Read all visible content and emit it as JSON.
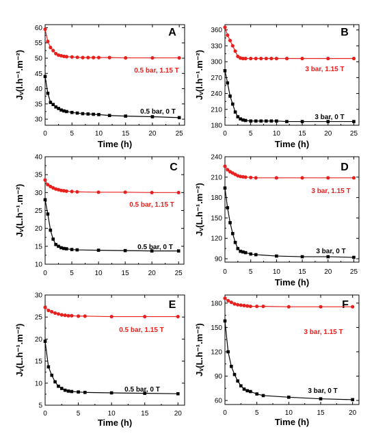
{
  "chart_data": [
    {
      "type": "line",
      "panel": "A",
      "xlabel": "Time (h)",
      "ylabel": "Jᵥ(l.h⁻¹.m⁻²)",
      "xlim": [
        0,
        26
      ],
      "ylim": [
        28,
        61
      ],
      "xticks": [
        0,
        5,
        10,
        15,
        20,
        25
      ],
      "yticks": [
        30,
        35,
        40,
        45,
        50,
        55,
        60
      ],
      "colors": {
        "0.5 bar, 1.15 T": "#e8201d",
        "0.5 bar, 0 T": "#000000"
      },
      "series": [
        {
          "name": "0.5 bar, 1.15 T",
          "x": [
            0,
            0.5,
            1,
            1.5,
            2,
            2.5,
            3,
            3.5,
            4,
            5,
            6,
            7,
            8,
            9,
            10,
            12,
            15,
            20,
            25
          ],
          "y": [
            59.5,
            55.5,
            53.5,
            52.5,
            51.5,
            51,
            50.8,
            50.6,
            50.5,
            50.4,
            50.3,
            50.2,
            50.2,
            50.2,
            50.2,
            50.2,
            50.1,
            50.1,
            50.1
          ]
        },
        {
          "name": "0.5 bar, 0 T",
          "x": [
            0,
            0.5,
            1,
            1.5,
            2,
            2.5,
            3,
            3.5,
            4,
            5,
            6,
            7,
            8,
            9,
            10,
            12,
            15,
            20,
            25
          ],
          "y": [
            44,
            38.5,
            35.5,
            34.8,
            34,
            33.5,
            33,
            32.7,
            32.5,
            32.2,
            32,
            31.8,
            31.7,
            31.6,
            31.5,
            31.2,
            31,
            30.8,
            30.5
          ]
        }
      ]
    },
    {
      "type": "line",
      "panel": "B",
      "xlabel": "Time (h)",
      "ylabel": "Jᵥ(l.h⁻¹.m⁻²)",
      "xlim": [
        0,
        26
      ],
      "ylim": [
        180,
        370
      ],
      "xticks": [
        0,
        5,
        10,
        15,
        20,
        25
      ],
      "yticks": [
        180,
        210,
        240,
        270,
        300,
        330,
        360
      ],
      "colors": {
        "3 bar, 1.15 T": "#e8201d",
        "3 bar, 0 T": "#000000"
      },
      "series": [
        {
          "name": "3 bar, 1.15 T",
          "x": [
            0,
            0.5,
            1,
            1.5,
            2,
            2.5,
            3,
            3.5,
            4,
            5,
            6,
            7,
            8,
            9,
            10,
            12,
            15,
            20,
            25
          ],
          "y": [
            365,
            350,
            340,
            330,
            320,
            310,
            307,
            306,
            306,
            306,
            306,
            306,
            306,
            306,
            306,
            306,
            306,
            306,
            306
          ]
        },
        {
          "name": "3 bar, 0 T",
          "x": [
            0,
            0.5,
            1,
            1.5,
            2,
            2.5,
            3,
            3.5,
            4,
            5,
            6,
            7,
            8,
            9,
            10,
            12,
            15,
            20,
            25
          ],
          "y": [
            283,
            260,
            235,
            220,
            205,
            196,
            192,
            190,
            189,
            188,
            188,
            188,
            188,
            188,
            188,
            187,
            187,
            187,
            187
          ]
        }
      ]
    },
    {
      "type": "line",
      "panel": "C",
      "xlabel": "",
      "ylabel": "Jᵥ(L.h⁻¹.m⁻²)",
      "xlim": [
        0,
        26
      ],
      "ylim": [
        10,
        40
      ],
      "xticks": [
        0,
        5,
        10,
        15,
        20,
        25
      ],
      "yticks": [
        10,
        15,
        20,
        25,
        30,
        35,
        40
      ],
      "colors": {
        "0.5 bar, 1.15 T": "#e8201d",
        "0.5 bar, 0 T": "#000000"
      },
      "series": [
        {
          "name": "0.5 bar, 1.15 T",
          "x": [
            0,
            0.5,
            1,
            1.5,
            2,
            2.5,
            3,
            3.5,
            4,
            5,
            6,
            10,
            15,
            20,
            25
          ],
          "y": [
            33.5,
            32.2,
            31.7,
            31.3,
            31,
            30.8,
            30.6,
            30.5,
            30.4,
            30.3,
            30.2,
            30.1,
            30.1,
            30,
            30
          ]
        },
        {
          "name": "0.5 bar, 0 T",
          "x": [
            0,
            0.5,
            1,
            1.5,
            2,
            2.5,
            3,
            3.5,
            4,
            5,
            6,
            10,
            15,
            20,
            25
          ],
          "y": [
            28,
            24,
            19.5,
            17,
            15.5,
            15,
            14.6,
            14.4,
            14.3,
            14.1,
            14,
            13.9,
            13.8,
            13.7,
            13.7
          ]
        }
      ]
    },
    {
      "type": "line",
      "panel": "D",
      "xlabel": "Time (h)",
      "ylabel": "Jᵥ(L.h⁻¹.m⁻²)",
      "xlim": [
        0,
        26
      ],
      "ylim": [
        85,
        240
      ],
      "xticks": [
        0,
        5,
        10,
        15,
        20,
        25
      ],
      "yticks": [
        90,
        120,
        150,
        180,
        210,
        240
      ],
      "colors": {
        "3 bar, 1.15 T": "#e8201d",
        "3 bar, 0 T": "#000000"
      },
      "series": [
        {
          "name": "3 bar, 1.15 T",
          "x": [
            0,
            0.5,
            1,
            1.5,
            2,
            2.5,
            3,
            3.5,
            4,
            5,
            6,
            10,
            15,
            20,
            25
          ],
          "y": [
            226,
            221,
            218,
            216,
            214,
            212,
            211,
            210.5,
            210,
            209.5,
            209,
            209,
            209,
            209,
            209
          ]
        },
        {
          "name": "3 bar, 0 T",
          "x": [
            0,
            0.5,
            1,
            1.5,
            2,
            2.5,
            3,
            3.5,
            4,
            5,
            6,
            10,
            15,
            20,
            25
          ],
          "y": [
            194,
            165,
            143,
            127,
            114,
            105,
            101,
            100,
            99,
            97,
            96,
            94,
            93,
            93,
            92
          ]
        }
      ]
    },
    {
      "type": "line",
      "panel": "E",
      "xlabel": "Time (h)",
      "ylabel": "Jᵥ(L.h⁻¹.m⁻²)",
      "xlim": [
        0,
        21
      ],
      "ylim": [
        5,
        30
      ],
      "xticks": [
        0,
        5,
        10,
        15,
        20
      ],
      "yticks": [
        5,
        10,
        15,
        20,
        25,
        30
      ],
      "colors": {
        "0.5 bar, 1.15 T": "#e8201d",
        "0.5 bar, 0 T": "#000000"
      },
      "series": [
        {
          "name": "0.5 bar, 1.15 T",
          "x": [
            0,
            0.5,
            1,
            1.5,
            2,
            2.5,
            3,
            3.5,
            4,
            5,
            6,
            10,
            15,
            20
          ],
          "y": [
            27.2,
            26.5,
            26.2,
            25.9,
            25.7,
            25.5,
            25.4,
            25.3,
            25.3,
            25.2,
            25.2,
            25.1,
            25.1,
            25.1
          ]
        },
        {
          "name": "0.5 bar, 0 T",
          "x": [
            0,
            0.5,
            1,
            1.5,
            2,
            2.5,
            3,
            3.5,
            4,
            5,
            6,
            10,
            15,
            20
          ],
          "y": [
            19.5,
            13.7,
            11.8,
            10.3,
            9.3,
            8.8,
            8.4,
            8.2,
            8.1,
            8,
            7.9,
            7.8,
            7.7,
            7.6
          ]
        }
      ]
    },
    {
      "type": "line",
      "panel": "F",
      "xlabel": "Time (h)",
      "ylabel": "Jᵥ(L.h⁻¹.m⁻²)",
      "xlim": [
        0,
        21
      ],
      "ylim": [
        55,
        190
      ],
      "xticks": [
        0,
        5,
        10,
        15,
        20
      ],
      "yticks": [
        60,
        90,
        120,
        150,
        180
      ],
      "colors": {
        "3 bar, 1.15 T": "#e8201d",
        "3 bar, 0 T": "#000000"
      },
      "series": [
        {
          "name": "3 bar, 1.15 T",
          "x": [
            0,
            0.5,
            1,
            1.5,
            2,
            2.5,
            3,
            3.5,
            4,
            5,
            6,
            10,
            15,
            20
          ],
          "y": [
            186,
            183,
            181,
            179,
            178,
            177.5,
            177,
            176.5,
            176,
            176,
            176,
            175.5,
            175.5,
            175.5
          ]
        },
        {
          "name": "3 bar, 0 T",
          "x": [
            0,
            0.5,
            1,
            1.5,
            2,
            2.5,
            3,
            3.5,
            4,
            5,
            6,
            10,
            15,
            20
          ],
          "y": [
            158,
            120,
            102,
            92,
            84,
            78,
            74,
            72,
            71,
            68,
            66,
            64,
            62,
            61
          ]
        }
      ]
    }
  ]
}
